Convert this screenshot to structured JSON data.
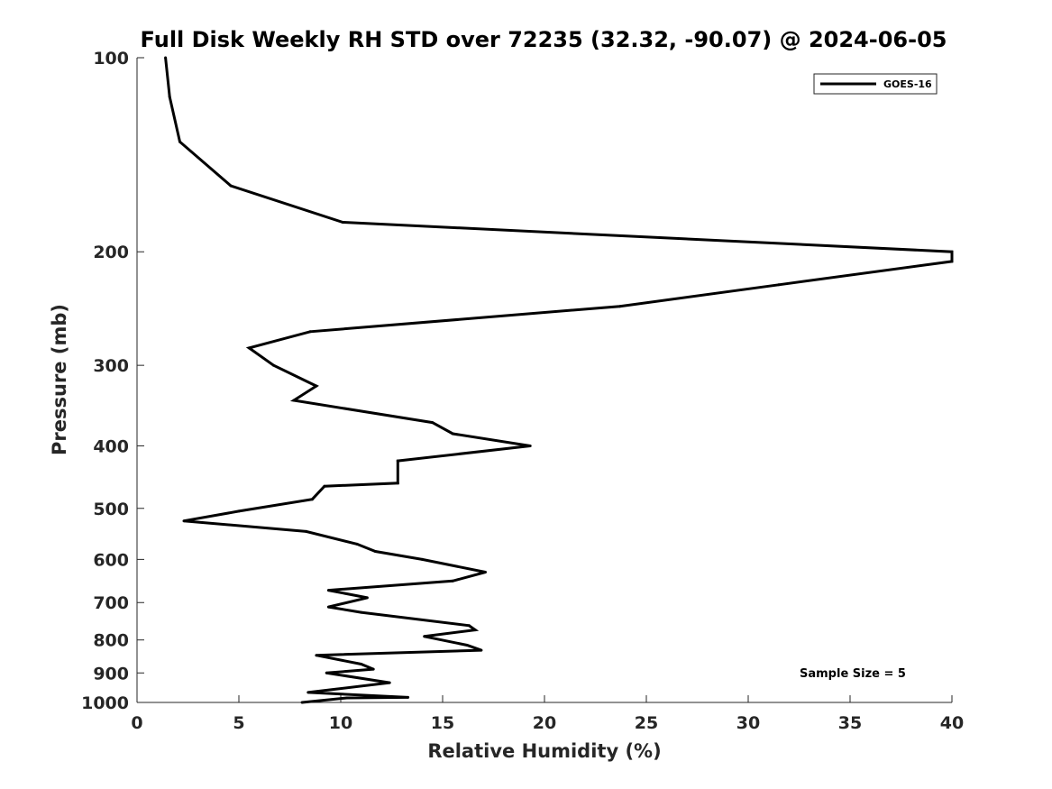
{
  "chart_data": {
    "type": "line",
    "title": "Full Disk Weekly RH STD over 72235 (32.32, -90.07) @ 2024-06-05",
    "xlabel": "Relative Humidity (%)",
    "ylabel": "Pressure (mb)",
    "xlim": [
      0,
      40
    ],
    "ylim": [
      100,
      1000
    ],
    "yscale": "log",
    "y_reversed": true,
    "grid": false,
    "legend_position": "top-right",
    "x_ticks": [
      "0",
      "5",
      "10",
      "15",
      "20",
      "25",
      "30",
      "35",
      "40"
    ],
    "y_ticks": [
      "100",
      "200",
      "300",
      "400",
      "500",
      "600",
      "700",
      "800",
      "900",
      "1000"
    ],
    "annotation": "Sample Size = 5",
    "colors": {
      "series": "#000000",
      "axis": "#262626"
    },
    "series": [
      {
        "name": "GOES-16",
        "x": [
          1.4,
          1.6,
          2.1,
          4.6,
          10.1,
          40.0,
          40.0,
          31.5,
          23.7,
          8.5,
          5.5,
          6.7,
          8.8,
          7.7,
          14.5,
          15.5,
          19.3,
          12.8,
          12.8,
          9.2,
          8.6,
          5.0,
          2.3,
          8.3,
          10.8,
          11.7,
          14.0,
          17.1,
          15.5,
          9.4,
          11.3,
          9.4,
          11.0,
          16.3,
          16.6,
          14.1,
          16.2,
          16.9,
          8.8,
          11.0,
          11.6,
          9.3,
          12.4,
          8.4,
          13.3,
          10.3,
          8.1
        ],
        "y": [
          100,
          115,
          135,
          158,
          180,
          200,
          207,
          225,
          243,
          266,
          282,
          300,
          323,
          340,
          368,
          383,
          400,
          422,
          457,
          462,
          484,
          505,
          523,
          543,
          568,
          583,
          600,
          628,
          648,
          670,
          688,
          711,
          725,
          760,
          772,
          790,
          815,
          830,
          845,
          872,
          888,
          900,
          932,
          965,
          982,
          984,
          1000
        ]
      }
    ]
  }
}
